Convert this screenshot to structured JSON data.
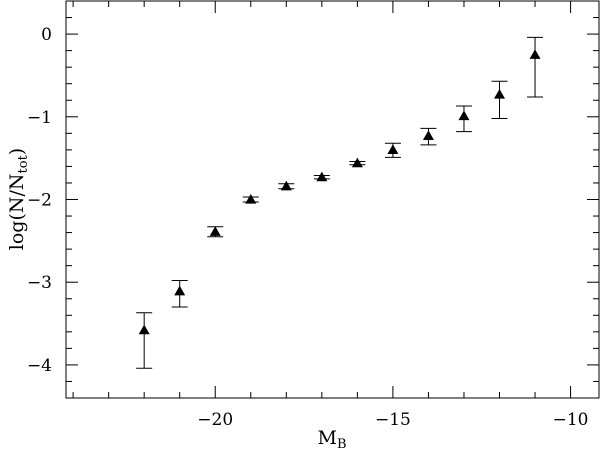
{
  "chart_data": {
    "type": "scatter",
    "title": "",
    "xlabel": "M",
    "xlabel_sub": "B",
    "ylabel": "log(N/N",
    "ylabel_sub": "tot",
    "ylabel_close": ")",
    "xlim": [
      -24.2,
      -9.2
    ],
    "ylim": [
      -4.4,
      0.4
    ],
    "x_major_ticks": [
      -20,
      -15,
      -10
    ],
    "x_major_labels": [
      "−20",
      "−15",
      "−10"
    ],
    "x_minor_ticks": [
      -24,
      -23,
      -22,
      -21,
      -19,
      -18,
      -17,
      -16,
      -14,
      -13,
      -12,
      -11
    ],
    "y_major_ticks": [
      0,
      -1,
      -2,
      -3,
      -4
    ],
    "y_major_labels": [
      "0",
      "−1",
      "−2",
      "−3",
      "−4"
    ],
    "y_minor_ticks": [
      0.2,
      -0.2,
      -0.4,
      -0.6,
      -0.8,
      -1.2,
      -1.4,
      -1.6,
      -1.8,
      -2.2,
      -2.4,
      -2.6,
      -2.8,
      -3.2,
      -3.4,
      -3.6,
      -3.8,
      -4.2
    ],
    "grid": false,
    "marker": "filled-triangle",
    "series": [
      {
        "points": [
          {
            "x": -22,
            "y": -3.58,
            "ylo": -4.04,
            "yhi": -3.37
          },
          {
            "x": -21,
            "y": -3.11,
            "ylo": -3.3,
            "yhi": -2.98
          },
          {
            "x": -20,
            "y": -2.39,
            "ylo": -2.45,
            "yhi": -2.33
          },
          {
            "x": -19,
            "y": -2.0,
            "ylo": -2.03,
            "yhi": -1.97
          },
          {
            "x": -18,
            "y": -1.84,
            "ylo": -1.87,
            "yhi": -1.81
          },
          {
            "x": -17,
            "y": -1.73,
            "ylo": -1.75,
            "yhi": -1.71
          },
          {
            "x": -16,
            "y": -1.56,
            "ylo": -1.58,
            "yhi": -1.54
          },
          {
            "x": -15,
            "y": -1.4,
            "ylo": -1.49,
            "yhi": -1.32
          },
          {
            "x": -14,
            "y": -1.23,
            "ylo": -1.34,
            "yhi": -1.14
          },
          {
            "x": -13,
            "y": -0.99,
            "ylo": -1.18,
            "yhi": -0.87
          },
          {
            "x": -12,
            "y": -0.73,
            "ylo": -1.02,
            "yhi": -0.57
          },
          {
            "x": -11,
            "y": -0.25,
            "ylo": -0.76,
            "yhi": -0.04
          }
        ]
      }
    ]
  }
}
